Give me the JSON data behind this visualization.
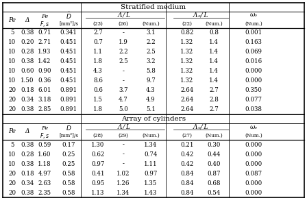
{
  "title1": "Stratified medium",
  "title2": "Array of cylinders",
  "data1": [
    [
      "5",
      "0.38",
      "0.71",
      "0.341",
      "2.7",
      "-",
      "3.1",
      "0.82",
      "0.8",
      "0.001"
    ],
    [
      "10",
      "0.20",
      "2.71",
      "0.451",
      "0.7",
      "1.9",
      "2.2",
      "1.32",
      "1.4",
      "0.163"
    ],
    [
      "10",
      "0.28",
      "1.93",
      "0.451",
      "1.1",
      "2.2",
      "2.5",
      "1.32",
      "1.4",
      "0.069"
    ],
    [
      "10",
      "0.38",
      "1.42",
      "0.451",
      "1.8",
      "2.5",
      "3.2",
      "1.32",
      "1.4",
      "0.016"
    ],
    [
      "10",
      "0.60",
      "0.90",
      "0.451",
      "4.3",
      "-",
      "5.8",
      "1.32",
      "1.4",
      "0.000"
    ],
    [
      "10",
      "1.50",
      "0.36",
      "0.451",
      "8.6",
      "-",
      "9.7",
      "1.32",
      "1.4",
      "0.000"
    ],
    [
      "20",
      "0.18",
      "6.01",
      "0.891",
      "0.6",
      "3.7",
      "4.3",
      "2.64",
      "2.7",
      "0.350"
    ],
    [
      "20",
      "0.34",
      "3.18",
      "0.891",
      "1.5",
      "4.7",
      "4.9",
      "2.64",
      "2.8",
      "0.077"
    ],
    [
      "20",
      "0.38",
      "2.85",
      "0.891",
      "1.8",
      "5.0",
      "5.1",
      "2.64",
      "2.7",
      "0.038"
    ]
  ],
  "data2": [
    [
      "5",
      "0.38",
      "0.59",
      "0.17",
      "1.30",
      "-",
      "1.34",
      "0.21",
      "0.30",
      "0.000"
    ],
    [
      "10",
      "0.28",
      "1.60",
      "0.25",
      "0.62",
      "-",
      "0.74",
      "0.42",
      "0.44",
      "0.000"
    ],
    [
      "10",
      "0.38",
      "1.18",
      "0.25",
      "0.97",
      "-",
      "1.11",
      "0.42",
      "0.40",
      "0.000"
    ],
    [
      "20",
      "0.18",
      "4.97",
      "0.58",
      "0.41",
      "1.02",
      "0.97",
      "0.84",
      "0.87",
      "0.087"
    ],
    [
      "20",
      "0.34",
      "2.63",
      "0.58",
      "0.95",
      "1.26",
      "1.35",
      "0.84",
      "0.68",
      "0.000"
    ],
    [
      "20",
      "0.38",
      "2.35",
      "0.58",
      "1.13",
      "1.34",
      "1.43",
      "0.84",
      "0.54",
      "0.000"
    ]
  ],
  "bg_color": "#e8e4de",
  "col_sub1": [
    "(23)",
    "(26)",
    "(Num.)",
    "(22)",
    "(Num.)",
    "(Num.)"
  ],
  "col_sub2": [
    "(28)",
    "(29)",
    "(Num.)",
    "(27)",
    "(Num.)",
    "(Num.)"
  ]
}
